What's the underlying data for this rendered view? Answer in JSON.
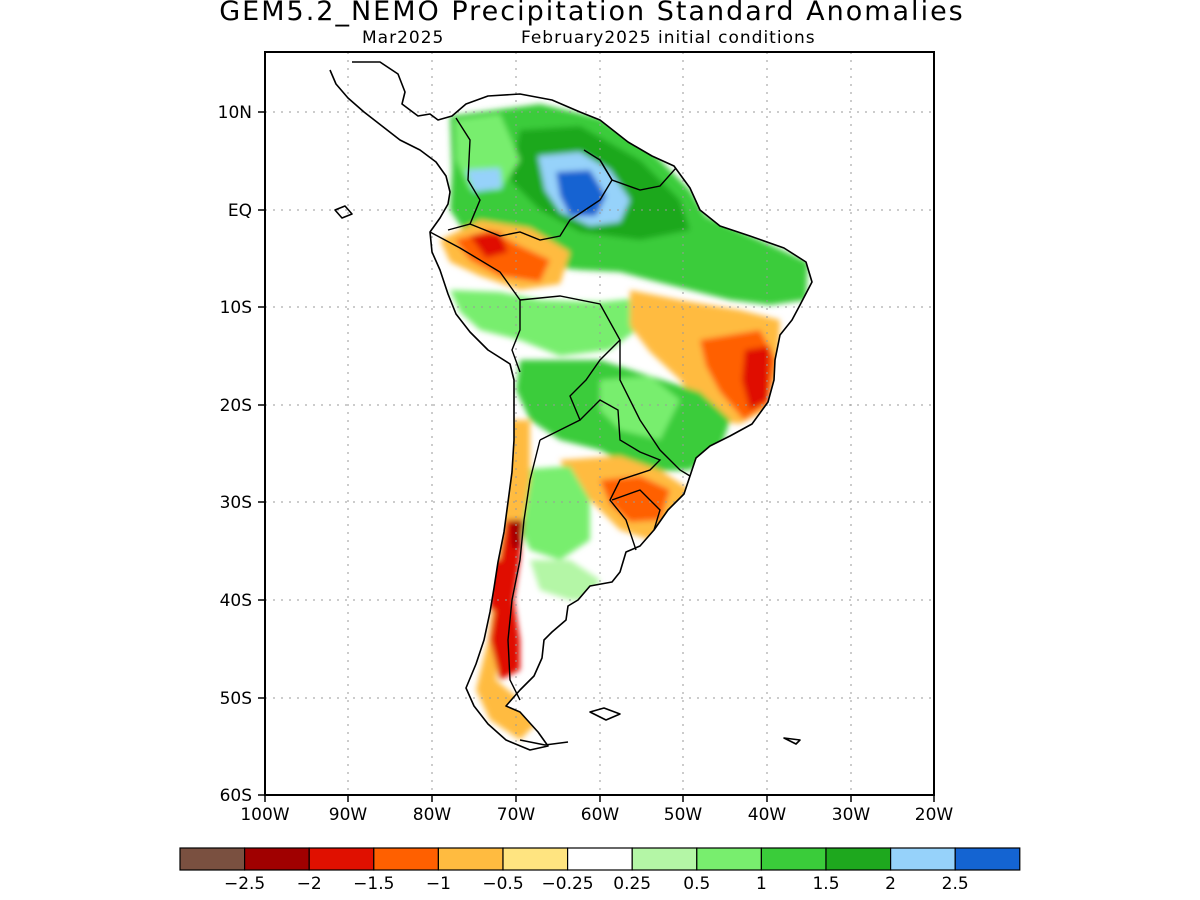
{
  "title": "GEM5.2_NEMO Precipitation Standard Anomalies",
  "subtitle_left": "Mar2025",
  "subtitle_right": "February2025 initial conditions",
  "lat_labels": [
    "10N",
    "EQ",
    "10S",
    "20S",
    "30S",
    "40S",
    "50S",
    "60S"
  ],
  "lon_labels": [
    "100W",
    "90W",
    "80W",
    "70W",
    "60W",
    "50W",
    "40W",
    "30W",
    "20W"
  ],
  "colorbar": {
    "colors": [
      "#7a5040",
      "#a00000",
      "#e01000",
      "#ff6000",
      "#ffbb40",
      "#ffe480",
      "#ffffff",
      "#b4f6a6",
      "#78ee6e",
      "#3acc3a",
      "#1ea81e",
      "#96d2fa",
      "#1464d2"
    ],
    "labels": [
      "−2.5",
      "−2",
      "−1.5",
      "−1",
      "−0.5",
      "−0.25",
      "0.25",
      "0.5",
      "1",
      "1.5",
      "2",
      "2.5"
    ]
  }
}
